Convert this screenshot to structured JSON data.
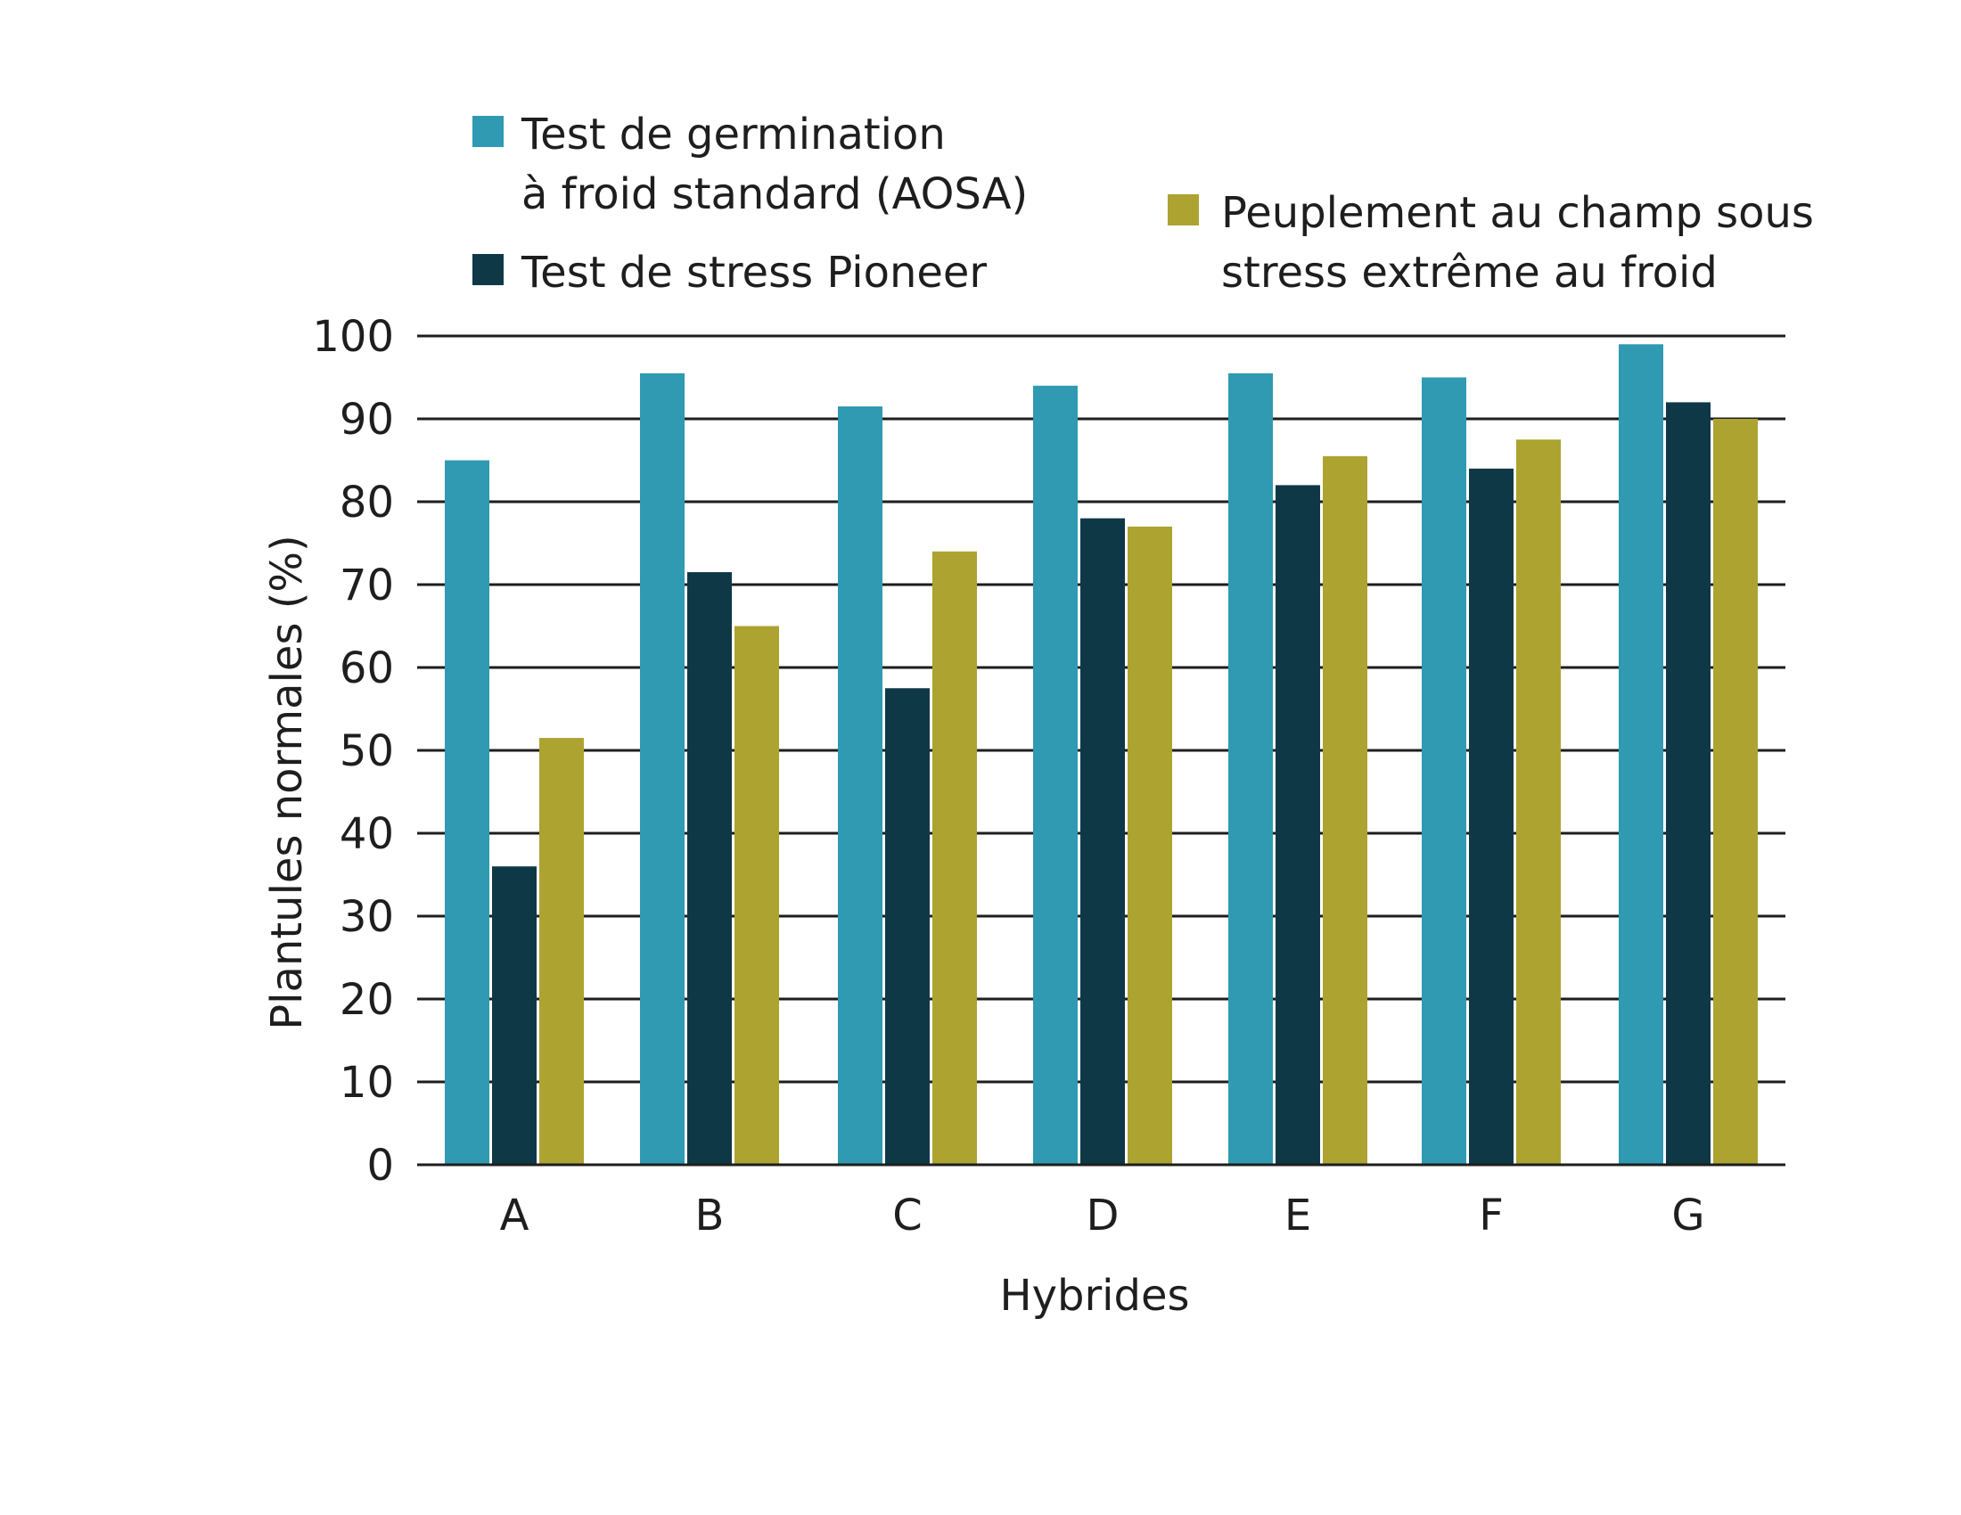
{
  "chart_data": {
    "type": "bar",
    "categories": [
      "A",
      "B",
      "C",
      "D",
      "E",
      "F",
      "G"
    ],
    "series": [
      {
        "name": "Test de germination à froid standard (AOSA)",
        "legend_lines": [
          "Test de germination",
          "à froid standard (AOSA)"
        ],
        "color": "#2f9ab2",
        "values": [
          85,
          95.5,
          91.5,
          94,
          95.5,
          95,
          99
        ]
      },
      {
        "name": "Test de stress Pioneer",
        "legend_lines": [
          "Test de stress Pioneer"
        ],
        "color": "#0f3846",
        "values": [
          36,
          71.5,
          57.5,
          78,
          82,
          84,
          92
        ]
      },
      {
        "name": "Peuplement au champ sous stress extrême au froid",
        "legend_lines": [
          "Peuplement au champ sous",
          "stress extrême au froid"
        ],
        "color": "#ada331",
        "values": [
          51.5,
          65,
          74,
          77,
          85.5,
          87.5,
          90
        ]
      }
    ],
    "xlabel": "Hybrides",
    "ylabel": "Plantules normales (%)",
    "ylim": [
      0,
      100
    ],
    "yticks": [
      "0",
      "10",
      "20",
      "30",
      "40",
      "50",
      "60",
      "70",
      "80",
      "90",
      "100"
    ],
    "grid": true,
    "legend_position": "top"
  }
}
